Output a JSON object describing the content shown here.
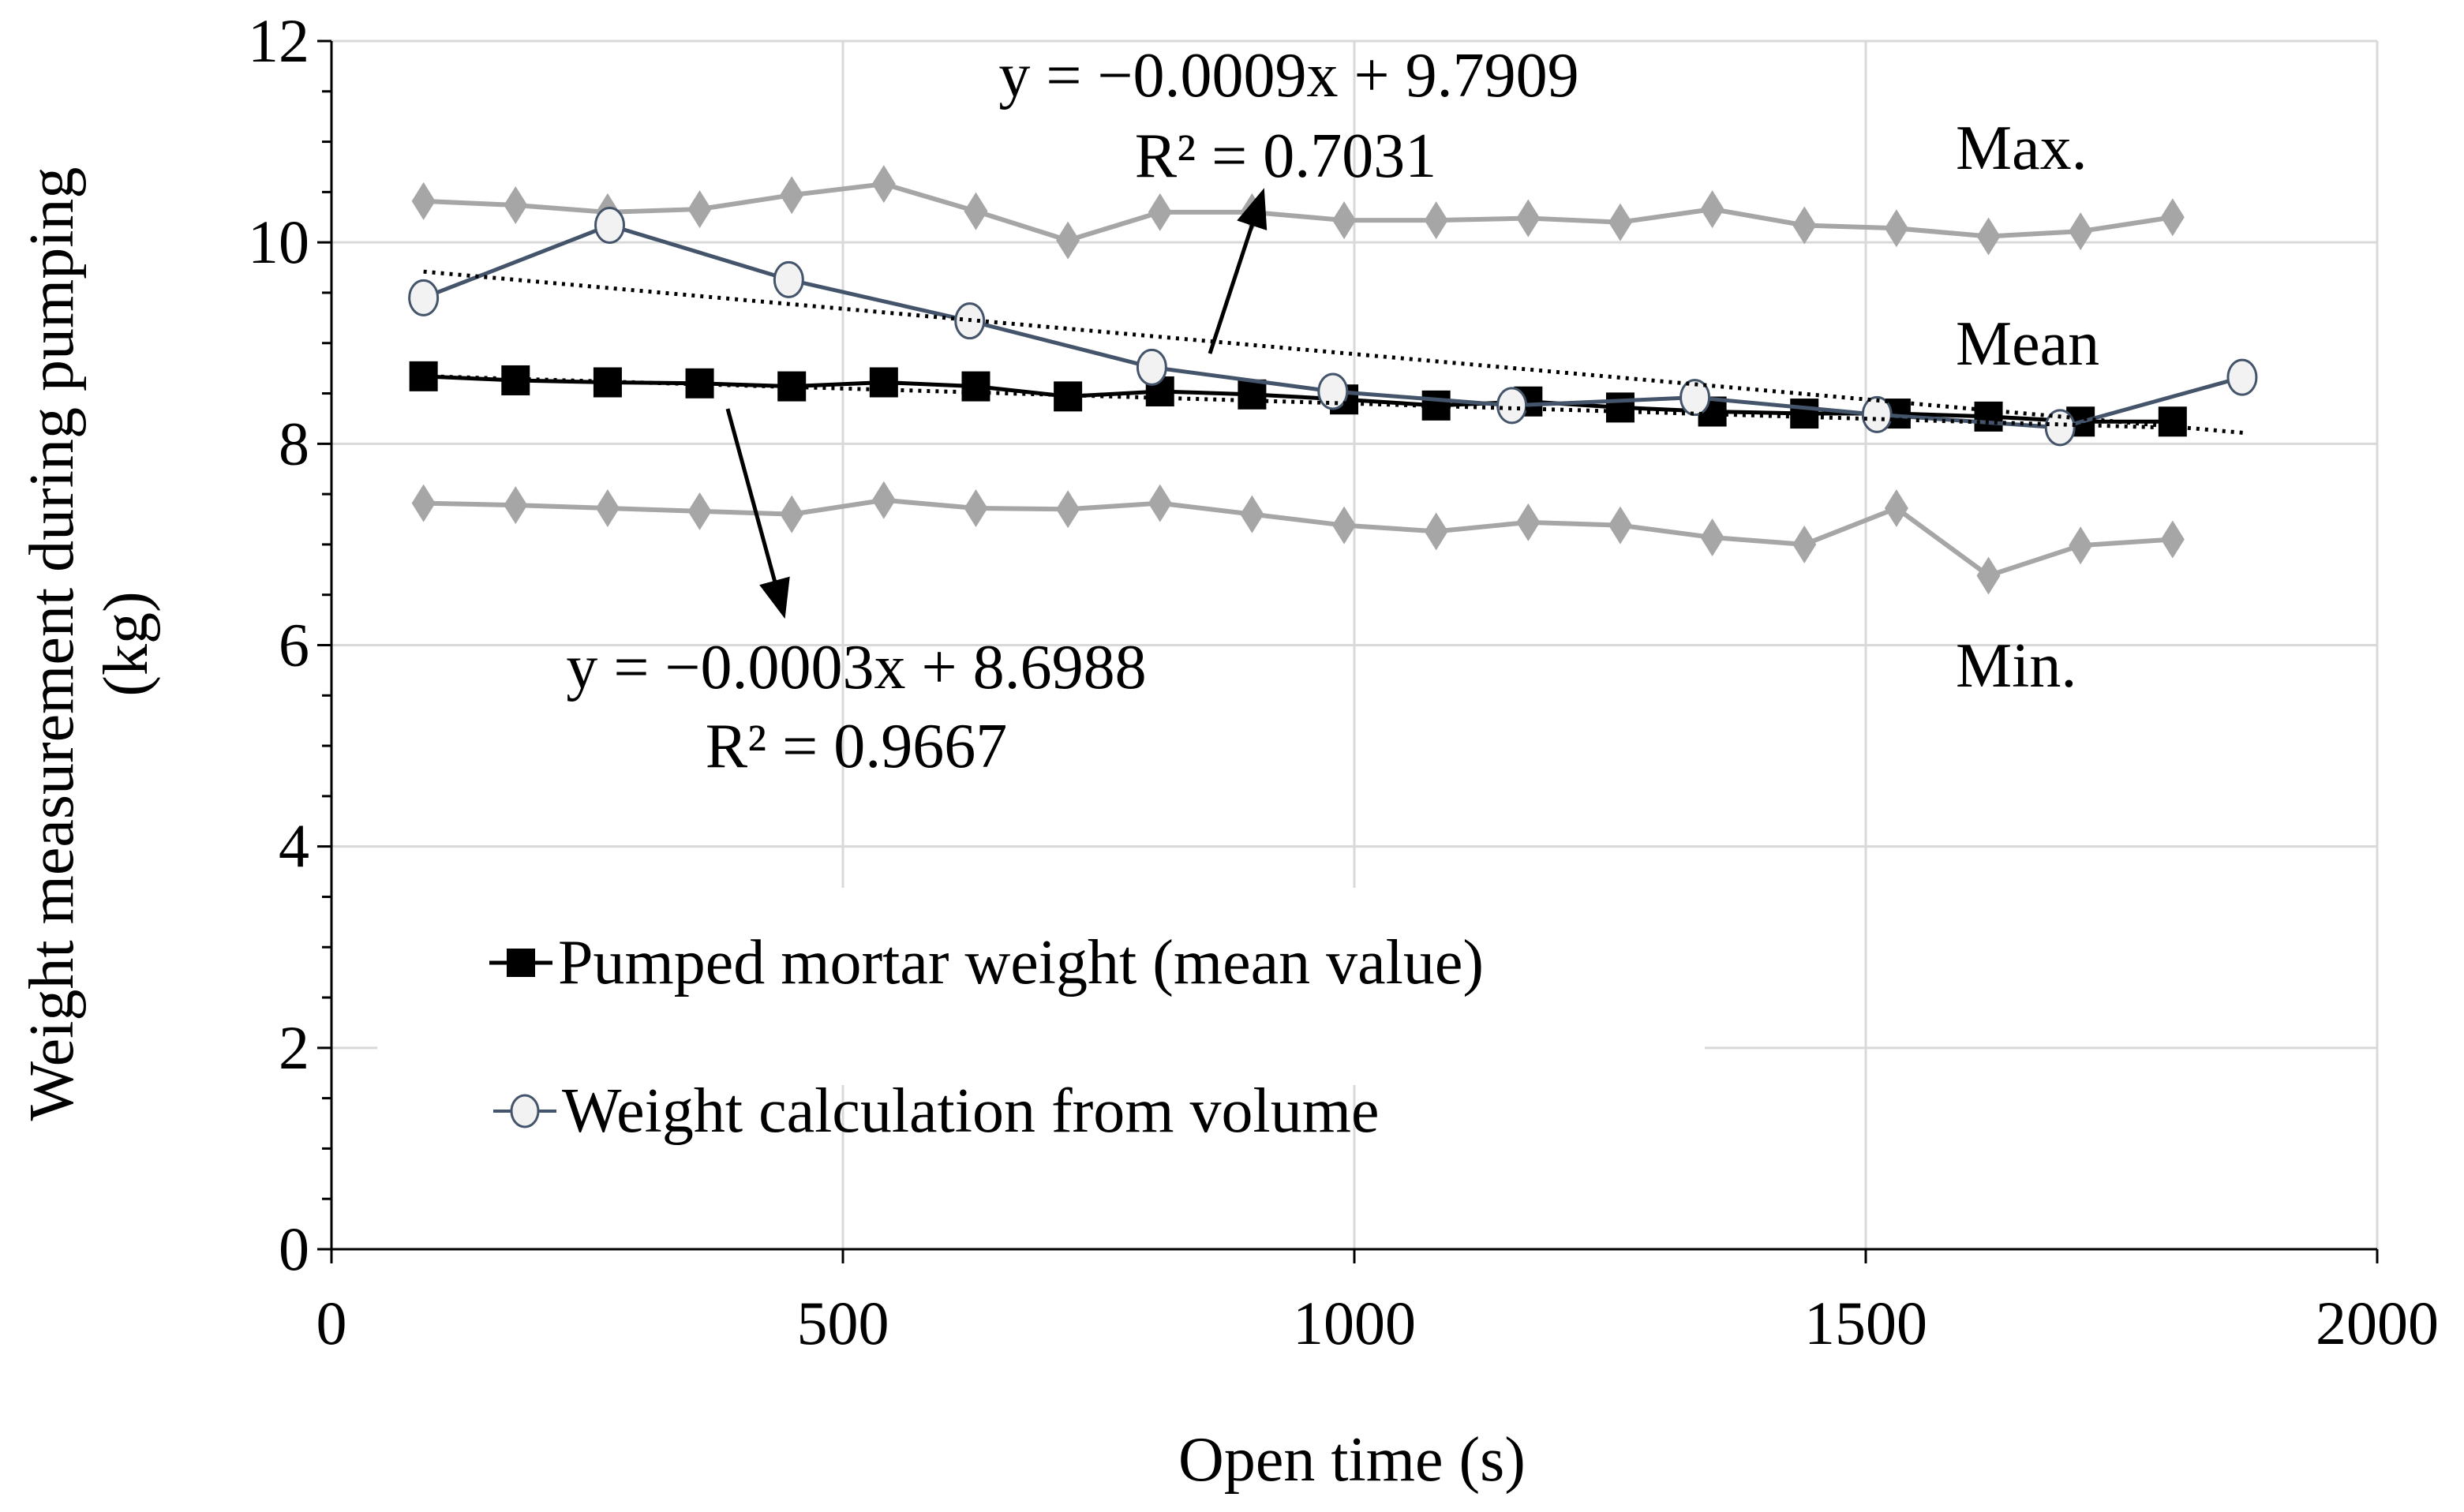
{
  "chart_data": {
    "type": "line",
    "title": "",
    "xlabel": "Open time (s)",
    "ylabel": [
      "Weight measurement during pumping",
      "(kg)"
    ],
    "xlim": [
      0,
      2000
    ],
    "ylim": [
      0,
      12
    ],
    "x_ticks": [
      "0",
      "500",
      "1000",
      "1500",
      "2000"
    ],
    "y_ticks": [
      "0",
      "2",
      "4",
      "6",
      "8",
      "10",
      "12"
    ],
    "grid": true,
    "legend_placement": "lower-left",
    "series": [
      {
        "name": "Max.",
        "legend": false,
        "color": "#a6a6a6",
        "marker": "diamond",
        "x": [
          90,
          180,
          270,
          360,
          450,
          540,
          630,
          720,
          810,
          900,
          990,
          1080,
          1170,
          1260,
          1350,
          1440,
          1530,
          1620,
          1710,
          1800
        ],
        "y": [
          10.41,
          10.37,
          10.3,
          10.33,
          10.47,
          10.58,
          10.31,
          10.02,
          10.3,
          10.3,
          10.22,
          10.22,
          10.24,
          10.2,
          10.33,
          10.17,
          10.14,
          10.06,
          10.11,
          10.25
        ]
      },
      {
        "name": "Min.",
        "legend": false,
        "color": "#a6a6a6",
        "marker": "diamond",
        "x": [
          90,
          180,
          270,
          360,
          450,
          540,
          630,
          720,
          810,
          900,
          990,
          1080,
          1170,
          1260,
          1350,
          1440,
          1530,
          1620,
          1710,
          1800
        ],
        "y": [
          7.41,
          7.39,
          7.36,
          7.33,
          7.3,
          7.44,
          7.36,
          7.35,
          7.41,
          7.3,
          7.19,
          7.13,
          7.22,
          7.19,
          7.07,
          7.0,
          7.36,
          6.69,
          6.99,
          7.05
        ]
      },
      {
        "name": "Pumped mortar weight (mean value)",
        "legend": true,
        "color": "#000000",
        "marker": "square",
        "x": [
          90,
          180,
          270,
          360,
          450,
          540,
          630,
          720,
          810,
          900,
          990,
          1080,
          1170,
          1260,
          1350,
          1440,
          1530,
          1620,
          1710,
          1800
        ],
        "y": [
          8.67,
          8.63,
          8.61,
          8.6,
          8.57,
          8.61,
          8.57,
          8.47,
          8.52,
          8.49,
          8.44,
          8.38,
          8.42,
          8.36,
          8.32,
          8.3,
          8.3,
          8.27,
          8.22,
          8.22
        ]
      },
      {
        "name": "Weight calculation from volume",
        "legend": true,
        "color": "#44546a",
        "marker": "circle",
        "x": [
          90,
          272,
          447,
          624,
          802,
          979,
          1154,
          1333,
          1511,
          1690,
          1868
        ],
        "y": [
          9.45,
          10.17,
          9.63,
          9.22,
          8.76,
          8.52,
          8.38,
          8.46,
          8.29,
          8.16,
          8.66
        ]
      }
    ],
    "trendlines": [
      {
        "series": "Weight calculation from volume",
        "slope": -0.0009,
        "intercept": 9.7909,
        "x_range": [
          90,
          1870
        ],
        "equation": "y = −0.0009x + 9.7909",
        "r2": "R² = 0.7031"
      },
      {
        "series": "Pumped mortar weight (mean value)",
        "slope": -0.0003,
        "intercept": 8.6988,
        "x_range": [
          90,
          1800
        ],
        "equation": "y = −0.0003x + 8.6988",
        "r2": "R² = 0.9667"
      }
    ],
    "annotations": [
      "Max.",
      "Mean",
      "Min."
    ]
  }
}
